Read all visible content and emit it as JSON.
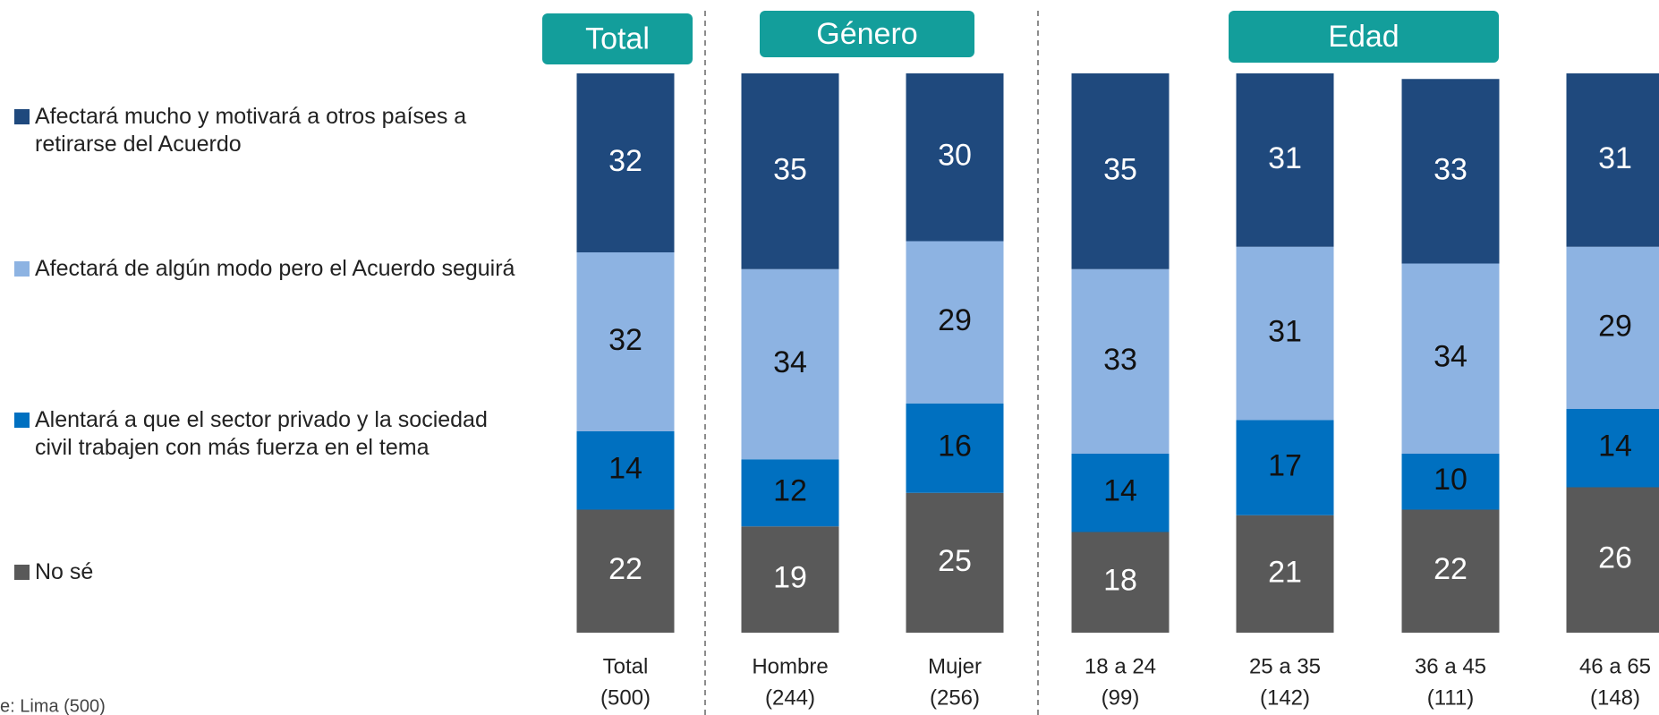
{
  "chart_data": {
    "type": "stacked_bar",
    "groups": [
      {
        "label": "Total",
        "from": 0,
        "to": 0
      },
      {
        "label": "Género",
        "from": 1,
        "to": 2
      },
      {
        "label": "Edad",
        "from": 3,
        "to": 6
      }
    ],
    "categories": [
      "Total",
      "Hombre",
      "Mujer",
      "18 a 24",
      "25 a 35",
      "36 a 45",
      "46 a 65"
    ],
    "sample_sizes": [
      "(500)",
      "(244)",
      "(256)",
      "(99)",
      "(142)",
      "(111)",
      "(148)"
    ],
    "ylim": [
      0,
      100
    ],
    "series": [
      {
        "name": "No sé",
        "color": "#595959",
        "label_color": "#ffffff",
        "values": [
          22,
          19,
          25,
          18,
          21,
          22,
          26
        ]
      },
      {
        "name": "Alentará a que el sector privado y la sociedad civil trabajen con más fuerza en el tema",
        "color": "#0070c0",
        "label_color": "#111111",
        "values": [
          14,
          12,
          16,
          14,
          17,
          10,
          14
        ]
      },
      {
        "name": "Afectará de algún modo pero el Acuerdo seguirá",
        "color": "#8db3e2",
        "label_color": "#111111",
        "values": [
          32,
          34,
          29,
          33,
          31,
          34,
          29
        ]
      },
      {
        "name": "Afectará mucho y motivará a otros países a retirarse del Acuerdo",
        "color": "#1f497d",
        "label_color": "#ffffff",
        "values": [
          32,
          35,
          30,
          35,
          31,
          33,
          31
        ]
      }
    ],
    "footnote": "e: Lima (500)"
  }
}
